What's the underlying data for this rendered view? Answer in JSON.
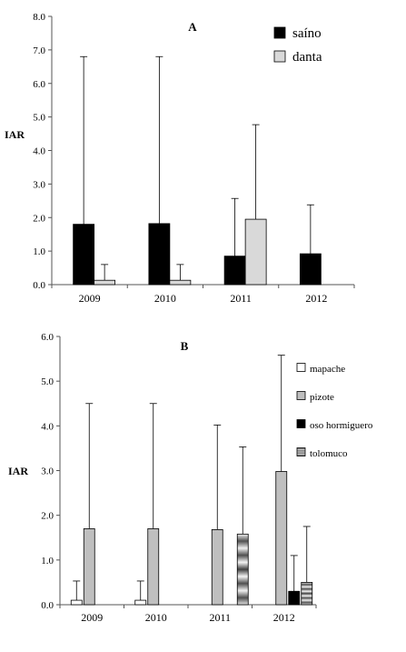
{
  "chart_data": [
    {
      "type": "bar",
      "panel_label": "A",
      "ylabel": "IAR",
      "categories": [
        "2009",
        "2010",
        "2011",
        "2012"
      ],
      "ylim": [
        0,
        8
      ],
      "yticks": [
        "0.0",
        "1.0",
        "2.0",
        "3.0",
        "4.0",
        "5.0",
        "6.0",
        "7.0",
        "8.0"
      ],
      "grid": false,
      "legend_position": "top-right",
      "series": [
        {
          "name": "saíno",
          "color": "#000000",
          "pattern": "solid",
          "values": [
            1.8,
            1.82,
            0.85,
            0.92
          ],
          "error": [
            6.8,
            6.8,
            2.57,
            2.38
          ]
        },
        {
          "name": "danta",
          "color": "#d9d9d9",
          "pattern": "solid",
          "values": [
            0.13,
            0.13,
            1.95,
            null
          ],
          "error": [
            0.6,
            0.6,
            4.77,
            null
          ]
        }
      ]
    },
    {
      "type": "bar",
      "panel_label": "B",
      "ylabel": "IAR",
      "categories": [
        "2009",
        "2010",
        "2011",
        "2012"
      ],
      "ylim": [
        0,
        6
      ],
      "yticks": [
        "0.0",
        "1.0",
        "2.0",
        "3.0",
        "4.0",
        "5.0",
        "6.0"
      ],
      "grid": false,
      "legend_position": "top-right",
      "series": [
        {
          "name": "mapache",
          "color": "#ffffff",
          "pattern": "solid",
          "values": [
            0.1,
            0.1,
            null,
            null
          ],
          "error": [
            0.53,
            0.53,
            null,
            null
          ]
        },
        {
          "name": "pizote",
          "color": "#bfbfbf",
          "pattern": "solid",
          "values": [
            1.7,
            1.7,
            1.68,
            2.98
          ],
          "error": [
            4.5,
            4.5,
            4.02,
            5.58
          ]
        },
        {
          "name": "oso hormiguero",
          "color": "#000000",
          "pattern": "solid",
          "values": [
            null,
            null,
            null,
            0.3
          ],
          "error": [
            null,
            null,
            null,
            1.1
          ]
        },
        {
          "name": "tolomuco",
          "color": "#a6a6a6",
          "pattern": "gradient-bands",
          "values": [
            null,
            null,
            1.58,
            0.5
          ],
          "error": [
            null,
            null,
            3.53,
            1.75
          ]
        }
      ]
    }
  ]
}
